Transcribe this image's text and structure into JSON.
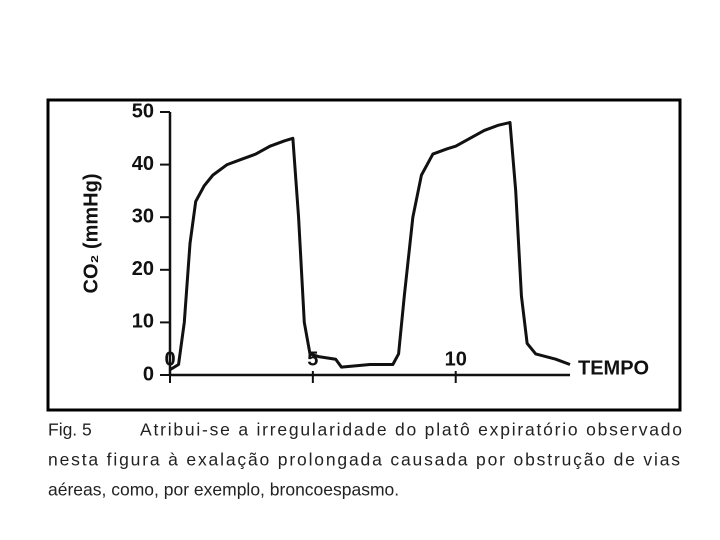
{
  "chart_data": {
    "type": "line",
    "y_label": "CO₂ (mmHg)",
    "x_label": "TEMPO",
    "x": [
      0,
      0.3,
      0.5,
      0.7,
      0.9,
      1.2,
      1.5,
      2,
      2.5,
      3,
      3.5,
      4,
      4.3,
      4.5,
      4.7,
      4.9,
      5.2,
      5.8,
      6,
      7,
      7.8,
      8,
      8.2,
      8.5,
      8.8,
      9.2,
      9.7,
      10,
      10.5,
      11,
      11.5,
      11.9,
      12.1,
      12.3,
      12.5,
      12.8,
      13.5,
      14
    ],
    "series": [
      {
        "color": "#111111",
        "values": [
          1,
          2,
          10,
          25,
          33,
          36,
          38,
          40,
          41,
          42,
          43.5,
          44.5,
          45,
          30,
          10,
          4,
          3.5,
          3,
          1.5,
          2,
          2,
          4,
          15,
          30,
          38,
          42,
          43,
          43.5,
          45,
          46.5,
          47.5,
          48,
          35,
          15,
          6,
          4,
          3,
          2
        ]
      }
    ],
    "xlim": [
      0,
      14
    ],
    "xticks": [
      0,
      5,
      10
    ],
    "ylim": [
      0,
      50
    ],
    "yticks": [
      0,
      10,
      20,
      30,
      40,
      50
    ],
    "caption_label": "Fig. 5",
    "caption": [
      "Atribui-se a irregularidade do platô expiratório observado",
      "nesta figura à exalação prolongada causada por obstrução de vias",
      "aéreas, como, por exemplo, broncoespasmo."
    ]
  }
}
